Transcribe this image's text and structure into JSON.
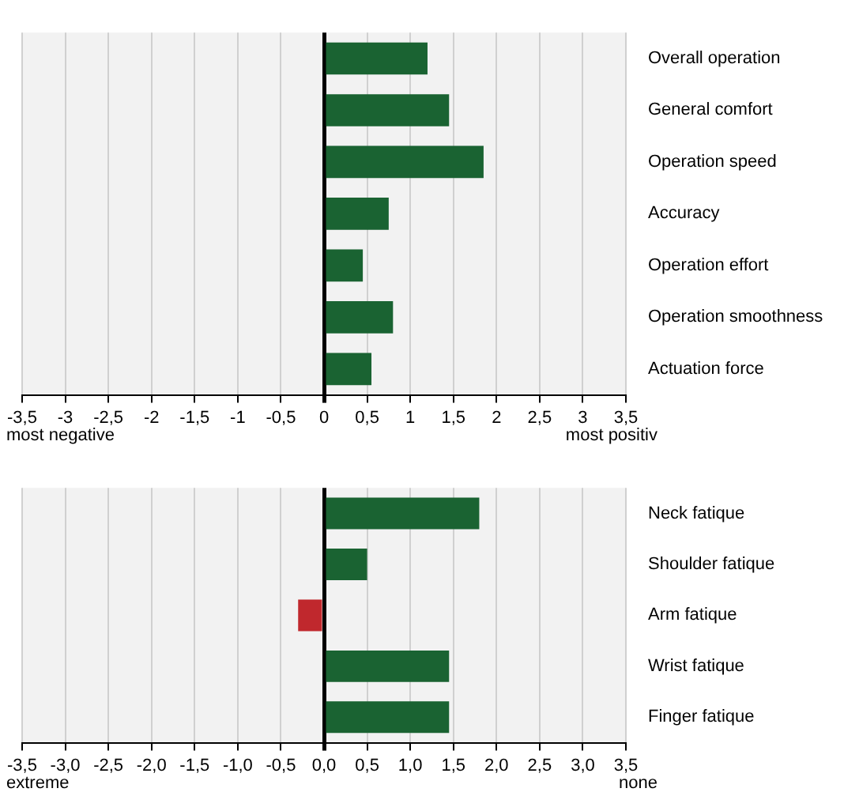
{
  "chart_data": [
    {
      "type": "bar",
      "orientation": "horizontal",
      "categories": [
        "Overall operation",
        "General comfort",
        "Operation speed",
        "Accuracy",
        "Operation effort",
        "Operation smoothness",
        "Actuation force"
      ],
      "values": [
        1.2,
        1.45,
        1.85,
        0.75,
        0.45,
        0.8,
        0.55
      ],
      "color": "#1a6332",
      "xlim": [
        -3.5,
        3.5
      ],
      "xticks": [
        {
          "value": -3.5,
          "label": "-3,5"
        },
        {
          "value": -3,
          "label": "-3"
        },
        {
          "value": -2.5,
          "label": "-2,5"
        },
        {
          "value": -2,
          "label": "-2"
        },
        {
          "value": -1.5,
          "label": "-1,5"
        },
        {
          "value": -1,
          "label": "-1"
        },
        {
          "value": -0.5,
          "label": "-0,5"
        },
        {
          "value": 0,
          "label": "0"
        },
        {
          "value": 0.5,
          "label": "0,5"
        },
        {
          "value": 1,
          "label": "1"
        },
        {
          "value": 1.5,
          "label": "1,5"
        },
        {
          "value": 2,
          "label": "2"
        },
        {
          "value": 2.5,
          "label": "2,5"
        },
        {
          "value": 3,
          "label": "3"
        },
        {
          "value": 3.5,
          "label": "3,5"
        }
      ],
      "grid": "x",
      "legend": false,
      "annotations": [
        "most negative",
        "most positiv"
      ]
    },
    {
      "type": "bar",
      "orientation": "horizontal",
      "categories": [
        "Neck fatique",
        "Shoulder fatique",
        "Arm fatique",
        "Wrist fatique",
        "Finger fatique"
      ],
      "values": [
        1.8,
        0.5,
        -0.3,
        1.45,
        1.45
      ],
      "colors": [
        "#1a6332",
        "#1a6332",
        "#c0282d",
        "#1a6332",
        "#1a6332"
      ],
      "xlim": [
        -3.5,
        3.5
      ],
      "xticks": [
        {
          "value": -3.5,
          "label": "-3,5"
        },
        {
          "value": -3,
          "label": "-3,0"
        },
        {
          "value": -2.5,
          "label": "-2,5"
        },
        {
          "value": -2,
          "label": "-2,0"
        },
        {
          "value": -1.5,
          "label": "-1,5"
        },
        {
          "value": -1,
          "label": "-1,0"
        },
        {
          "value": -0.5,
          "label": "-0,5"
        },
        {
          "value": 0,
          "label": "0,0"
        },
        {
          "value": 0.5,
          "label": "0,5"
        },
        {
          "value": 1,
          "label": "1,0"
        },
        {
          "value": 1.5,
          "label": "1,5"
        },
        {
          "value": 2,
          "label": "2,0"
        },
        {
          "value": 2.5,
          "label": "2,5"
        },
        {
          "value": 3,
          "label": "3,0"
        },
        {
          "value": 3.5,
          "label": "3,5"
        }
      ],
      "grid": "x",
      "legend": false,
      "annotations": [
        "extreme",
        "none"
      ]
    }
  ]
}
